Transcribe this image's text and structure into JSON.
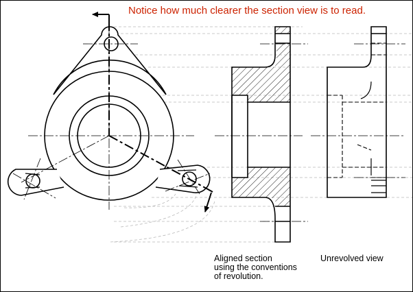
{
  "title": "Notice how much clearer the section view is to read.",
  "captions": {
    "aligned_section": [
      "Aligned section",
      "using the conventions",
      "of revolution."
    ],
    "unrevolved_view": "Unrevolved view"
  },
  "colors": {
    "title": "#cc2200",
    "line": "#000000",
    "projection": "#bbbbbb"
  }
}
